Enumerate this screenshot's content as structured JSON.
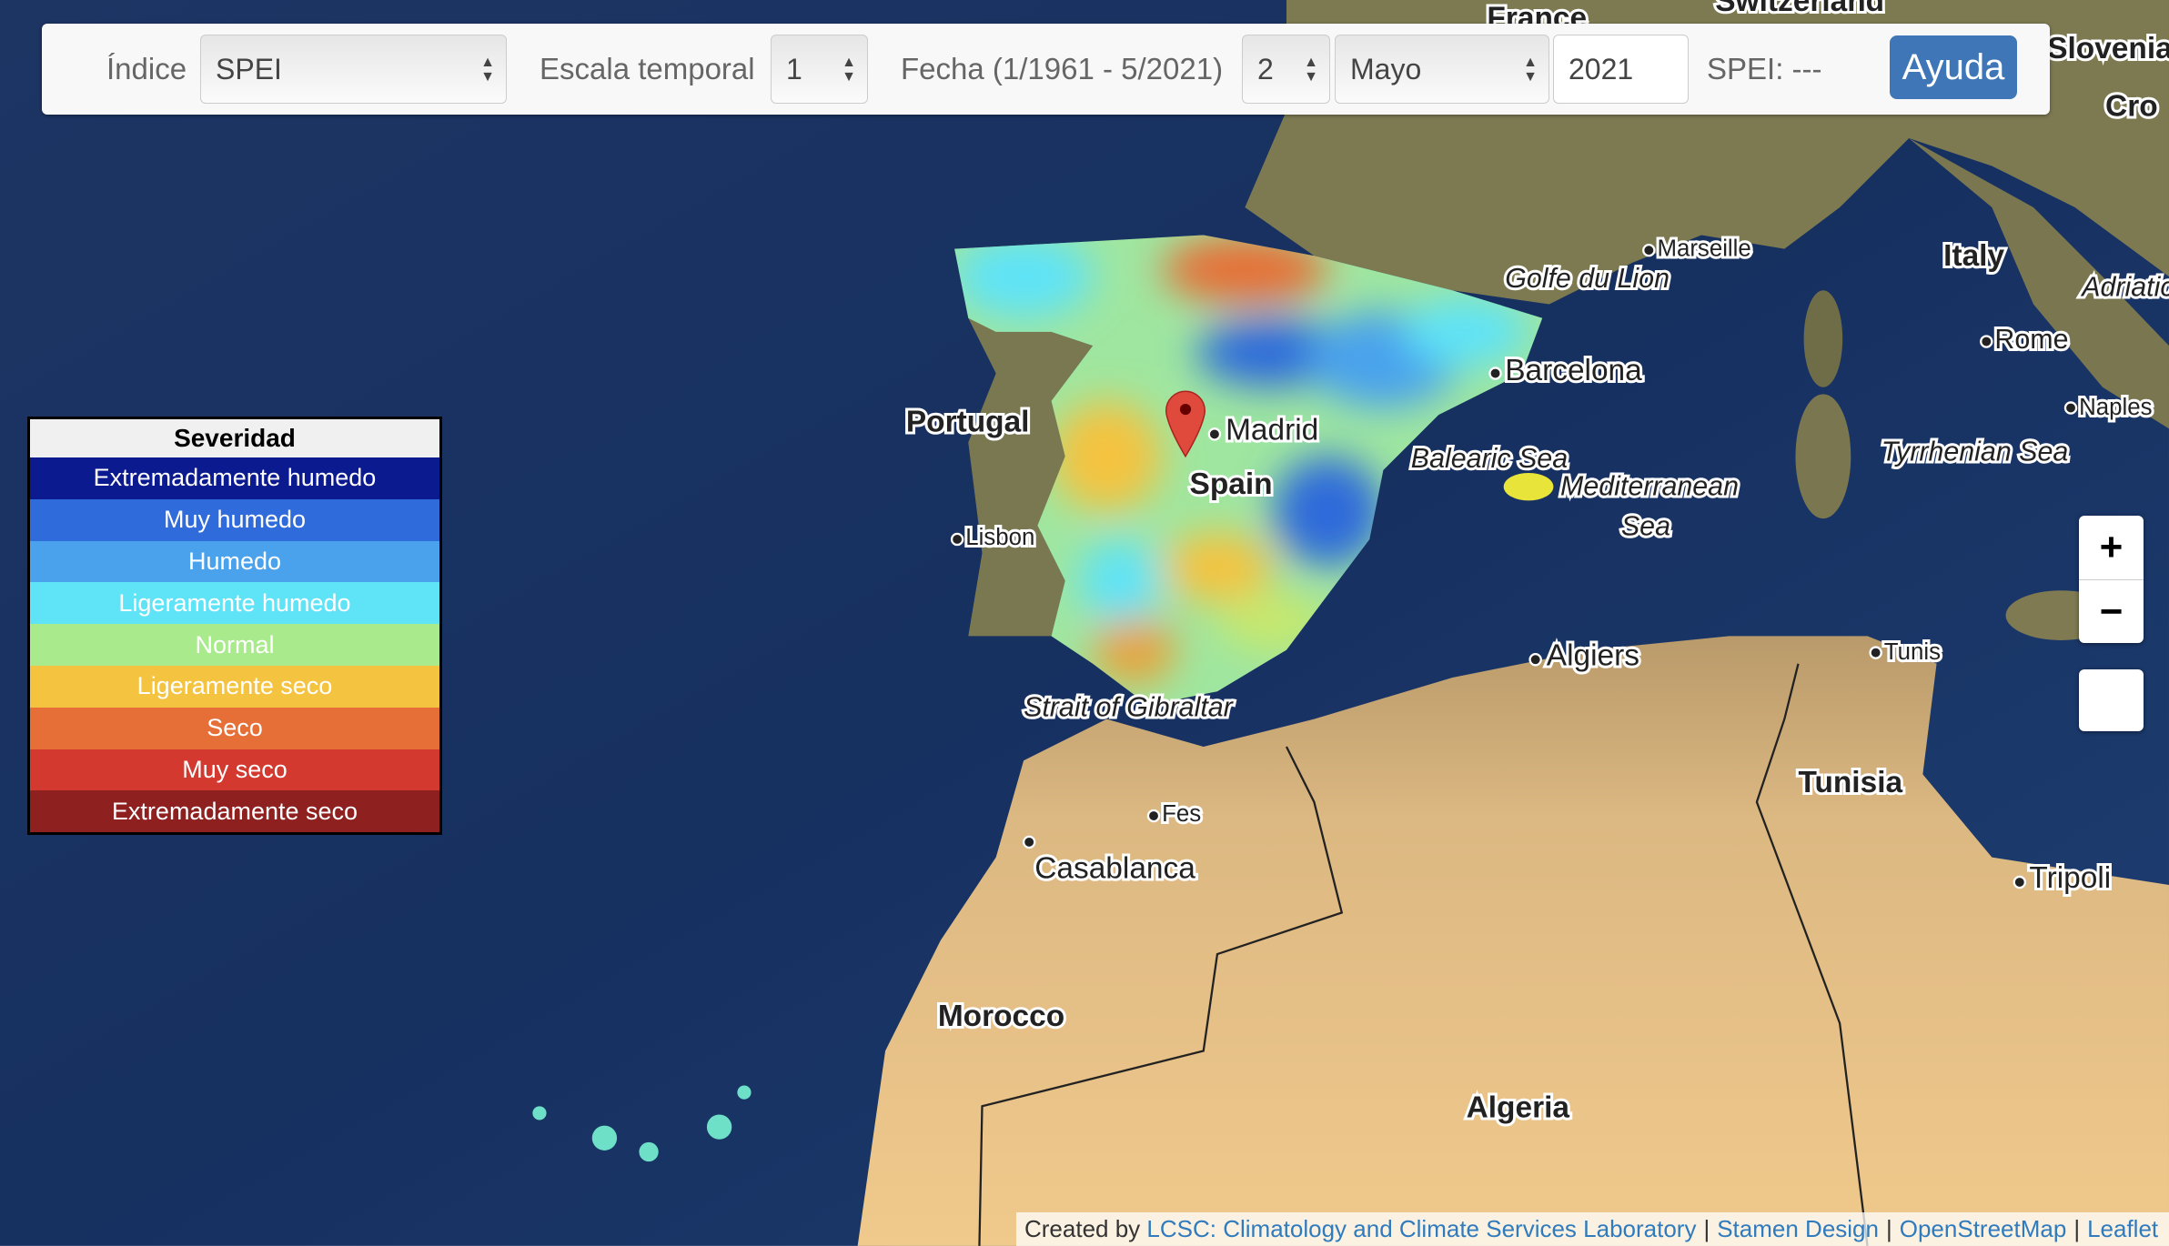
{
  "toolbar": {
    "index_label": "Índice",
    "index_value": "SPEI",
    "scale_label": "Escala temporal",
    "scale_value": "1",
    "date_label": "Fecha (1/1961 - 5/2021)",
    "date_period_value": "2",
    "month_value": "Mayo",
    "year_value": "2021",
    "spei_readout": "SPEI: ---",
    "help_label": "Ayuda"
  },
  "legend": {
    "title": "Severidad",
    "items": [
      {
        "label": "Extremadamente humedo",
        "color": "#0b1a8e"
      },
      {
        "label": "Muy humedo",
        "color": "#2f6bda"
      },
      {
        "label": "Humedo",
        "color": "#4aa2ec"
      },
      {
        "label": "Ligeramente humedo",
        "color": "#5fe3f7"
      },
      {
        "label": "Normal",
        "color": "#a9ea8d"
      },
      {
        "label": "Ligeramente seco",
        "color": "#f4c33f"
      },
      {
        "label": "Seco",
        "color": "#e66f38"
      },
      {
        "label": "Muy seco",
        "color": "#d3392f"
      },
      {
        "label": "Extremadamente seco",
        "color": "#8e2020"
      }
    ]
  },
  "zoom": {
    "in": "+",
    "out": "−"
  },
  "map_labels": {
    "france": "France",
    "switzerland": "Switzerland",
    "slovenia": "Slovenia",
    "croatia": "Cro",
    "italy": "Italy",
    "adriatic": "Adriatic",
    "rome": "Rome",
    "naples": "Naples",
    "tyrrhenian": "Tyrrhenian Sea",
    "marseille": "Marseille",
    "golfe": "Golfe du Lion",
    "barcelona": "Barcelona",
    "portugal": "Portugal",
    "madrid": "Madrid",
    "spain": "Spain",
    "lisbon": "Lisbon",
    "balearic": "Balearic Sea",
    "mediterranean": "Mediterranean",
    "sea": "Sea",
    "algiers": "Algiers",
    "tunis": "Tunis",
    "gibraltar": "Strait of Gibraltar",
    "tunisia": "Tunisia",
    "fes": "Fes",
    "casablanca": "Casablanca",
    "tripoli": "Tripoli",
    "morocco": "Morocco",
    "algeria": "Algeria"
  },
  "attribution": {
    "prefix": "Created by",
    "links": [
      "LCSC: Climatology and Climate Services Laboratory",
      "Stamen Design",
      "OpenStreetMap",
      "Leaflet"
    ]
  },
  "marker": {
    "color": "#e04a3c",
    "location": "Madrid"
  }
}
